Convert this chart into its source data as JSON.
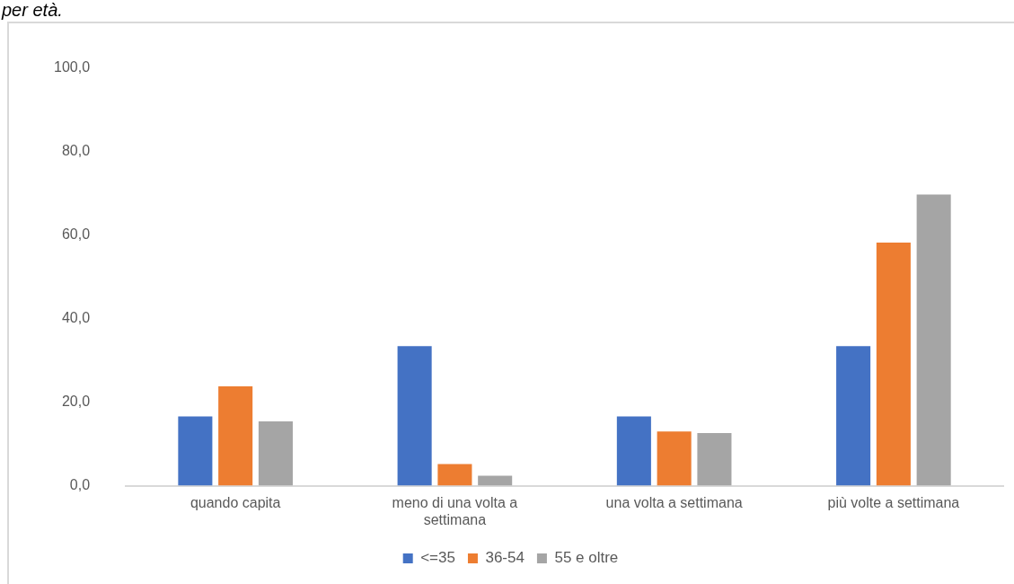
{
  "chart_data": {
    "type": "bar",
    "title": "per età.",
    "categories": [
      "quando capita",
      "meno di una volta a settimana",
      "una volta a settimana",
      "più volte a settimana"
    ],
    "series": [
      {
        "name": "<=35",
        "color": "#4472c4",
        "values": [
          16.6,
          33.4,
          16.6,
          33.4
        ]
      },
      {
        "name": "36-54",
        "color": "#ed7d31",
        "values": [
          23.8,
          5.2,
          13.0,
          58.2
        ]
      },
      {
        "name": "55 e oltre",
        "color": "#a5a5a5",
        "values": [
          15.4,
          2.4,
          12.6,
          69.7
        ]
      }
    ],
    "ylim": [
      0,
      100
    ],
    "yticks": [
      {
        "value": 0,
        "label": "0,0"
      },
      {
        "value": 20,
        "label": "20,0"
      },
      {
        "value": 40,
        "label": "40,0"
      },
      {
        "value": 60,
        "label": "60,0"
      },
      {
        "value": 80,
        "label": "80,0"
      },
      {
        "value": 100,
        "label": "100,0"
      }
    ],
    "grid": false,
    "legend": "bottom"
  }
}
